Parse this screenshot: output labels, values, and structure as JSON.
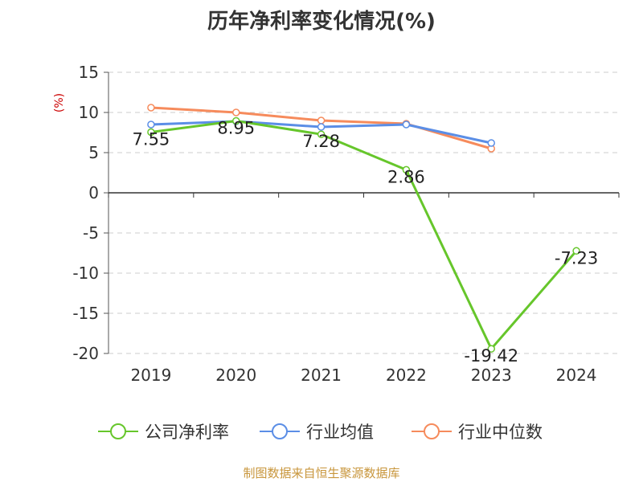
{
  "chart_data": {
    "type": "line",
    "title": "历年净利率变化情况(%)",
    "ylabel": "(%)",
    "categories": [
      "2019",
      "2020",
      "2021",
      "2022",
      "2023",
      "2024"
    ],
    "ylim": [
      -20,
      15
    ],
    "yticks": [
      15,
      10,
      5,
      0,
      -5,
      -10,
      -15,
      -20
    ],
    "grid": "dashed horizontal",
    "legend_position": "bottom",
    "series": [
      {
        "name": "公司净利率",
        "color": "#66c62b",
        "values": [
          7.55,
          8.95,
          7.28,
          2.86,
          -19.42,
          -7.23
        ],
        "labels": [
          "7.55",
          "8.95",
          "7.28",
          "2.86",
          "-19.42",
          "-7.23"
        ]
      },
      {
        "name": "行业均值",
        "color": "#5b8ee6",
        "values": [
          8.5,
          8.9,
          8.2,
          8.5,
          6.2,
          null
        ]
      },
      {
        "name": "行业中位数",
        "color": "#f68b5c",
        "values": [
          10.6,
          10.0,
          9.0,
          8.6,
          5.5,
          null
        ]
      }
    ]
  },
  "source": "制图数据来自恒生聚源数据库"
}
